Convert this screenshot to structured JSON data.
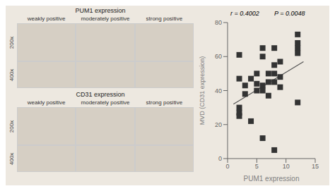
{
  "chart_data": {
    "type": "scatter",
    "x": [
      2,
      2,
      2,
      2,
      2,
      3,
      3,
      4,
      4,
      5,
      5,
      5,
      6,
      6,
      6,
      6,
      6,
      7,
      7,
      7,
      8,
      8,
      8,
      8,
      8,
      9,
      9,
      9,
      12,
      12,
      12,
      12,
      12
    ],
    "values": [
      61,
      47,
      30,
      27,
      25,
      43,
      38,
      47,
      22,
      50,
      44,
      40,
      65,
      60,
      43,
      40,
      12,
      50,
      45,
      37,
      65,
      55,
      50,
      45,
      5,
      57,
      48,
      42,
      73,
      68,
      65,
      62,
      33
    ],
    "color": "#333333",
    "marker": "square",
    "xlabel": "PUM1 expression",
    "ylabel": "MVD (CD31 expression)",
    "xlim": [
      0,
      15
    ],
    "ylim": [
      0,
      80
    ],
    "xticks": [
      0,
      5,
      10,
      15
    ],
    "yticks": [
      0,
      20,
      40,
      60,
      80
    ],
    "annotations": [
      "r = 0.4002",
      "P = 0.0048"
    ],
    "fit_line": {
      "x": [
        1,
        13
      ],
      "values": [
        32,
        57
      ],
      "color": "#555555"
    },
    "image_panels": [
      {
        "title": "PUM1 expression",
        "columns": [
          "weakly positive",
          "moderately positive",
          "strong positive"
        ],
        "rows": [
          "200x",
          "400x"
        ]
      },
      {
        "title": "CD31 expression",
        "columns": [
          "weakly positive",
          "moderately positive",
          "strong positive"
        ],
        "rows": [
          "200x",
          "400x"
        ]
      }
    ]
  }
}
